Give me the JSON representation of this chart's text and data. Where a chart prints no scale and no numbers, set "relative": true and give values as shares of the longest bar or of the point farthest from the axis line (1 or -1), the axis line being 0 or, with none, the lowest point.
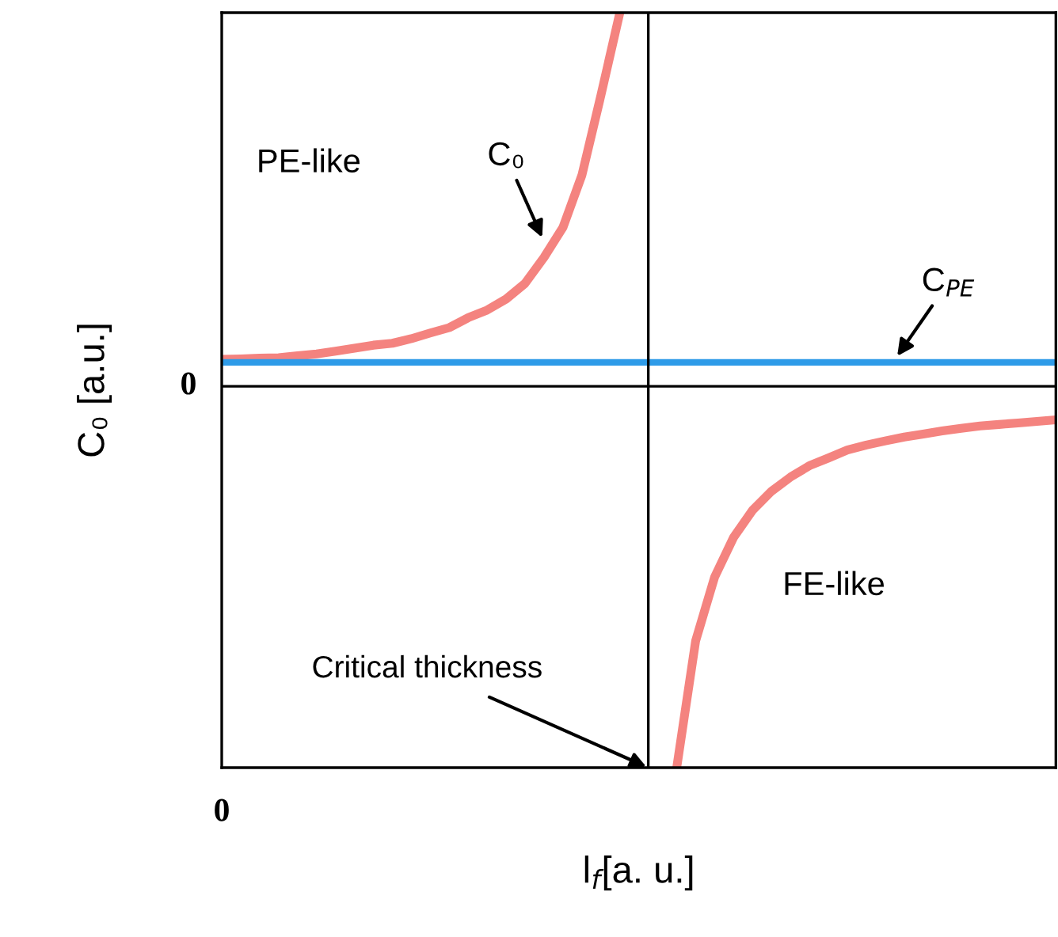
{
  "chart_data": {
    "type": "line",
    "relative": true,
    "xlabel": "l$_{f}$[a. u.]",
    "ylabel": "C₀ [a.u.]",
    "categories": [
      null,
      null,
      null,
      null,
      null,
      null,
      null,
      null,
      null,
      null,
      null,
      null,
      null,
      null,
      null,
      null,
      null,
      null,
      null,
      null,
      null,
      null,
      null,
      null,
      null,
      null,
      null,
      null,
      null,
      null,
      null,
      null,
      null,
      null,
      null,
      null,
      null,
      null,
      null,
      null,
      null,
      null,
      null,
      null,
      null
    ],
    "series": [
      {
        "name": "C₀",
        "color": "#f4837f",
        "values": [
          0.071,
          0.072,
          0.074,
          0.075,
          0.08,
          0.085,
          0.092,
          0.1,
          0.108,
          0.113,
          0.125,
          0.14,
          0.154,
          0.18,
          0.2,
          0.229,
          0.27,
          0.338,
          0.417,
          0.554,
          0.763,
          0.98,
          null,
          null,
          -1.0,
          -0.667,
          -0.5,
          -0.396,
          -0.325,
          -0.275,
          -0.238,
          -0.208,
          -0.188,
          -0.167,
          -0.154,
          -0.143,
          -0.133,
          -0.125,
          -0.117,
          -0.11,
          -0.104,
          -0.1,
          -0.096,
          -0.092,
          -0.088
        ]
      },
      {
        "name": "C$_{PE}$",
        "color": "#2e9be8",
        "values": [
          0.063,
          0.063,
          0.063,
          0.063,
          0.063,
          0.063,
          0.063,
          0.063,
          0.063,
          0.063,
          0.063,
          0.063,
          0.063,
          0.063,
          0.063,
          0.063,
          0.063,
          0.063,
          0.063,
          0.063,
          0.063,
          0.063,
          0.063,
          0.063,
          0.063,
          0.063,
          0.063,
          0.063,
          0.063,
          0.063,
          0.063,
          0.063,
          0.063,
          0.063,
          0.063,
          0.063,
          0.063,
          0.063,
          0.063,
          0.063,
          0.063,
          0.063,
          0.063,
          0.063,
          0.063
        ]
      }
    ],
    "annotations": [
      "PE-like",
      "FE-like",
      "Critical thickness",
      "0",
      "0"
    ],
    "legend": false,
    "marker": "none",
    "line_style": "solid"
  }
}
